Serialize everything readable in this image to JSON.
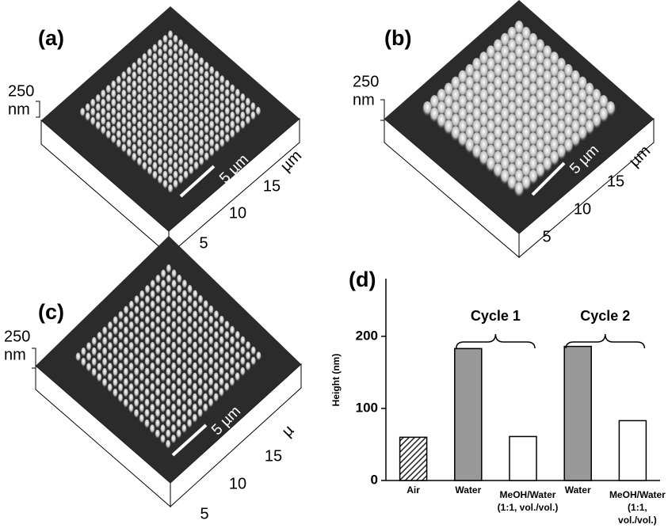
{
  "panels": [
    {
      "label": "(a)",
      "scale_value": "250",
      "scale_unit": "nm",
      "scale_bar": "5 µm",
      "axis_ticks": [
        "5",
        "10",
        "15"
      ],
      "axis_unit": "µm"
    },
    {
      "label": "(b)",
      "scale_value": "250",
      "scale_unit": "nm",
      "scale_bar": "5 µm",
      "axis_ticks": [
        "5",
        "10",
        "15"
      ],
      "axis_unit": "µm"
    },
    {
      "label": "(c)",
      "scale_value": "250",
      "scale_unit": "nm",
      "scale_bar": "5 µm",
      "axis_ticks": [
        "5",
        "10",
        "15"
      ],
      "axis_unit": "µ"
    }
  ],
  "chart_data": {
    "type": "bar",
    "title": "(d)",
    "y_label": "Height (nm)",
    "categories": [
      "Air",
      "Water",
      "MeOH/Water\n(1:1, vol./vol.)",
      "Water",
      "MeOH/Water\n(1:1, vol./vol.)"
    ],
    "values": [
      60,
      183,
      61,
      186,
      83
    ],
    "colors": [
      "#333333",
      "#999999",
      "#ffffff",
      "#999999",
      "#ffffff"
    ],
    "hatched": [
      true,
      false,
      false,
      false,
      false
    ],
    "annotations": [
      "Cycle 1",
      "Cycle 2"
    ],
    "ylim": [
      0,
      280
    ],
    "yticks": [
      0,
      100,
      200
    ]
  }
}
